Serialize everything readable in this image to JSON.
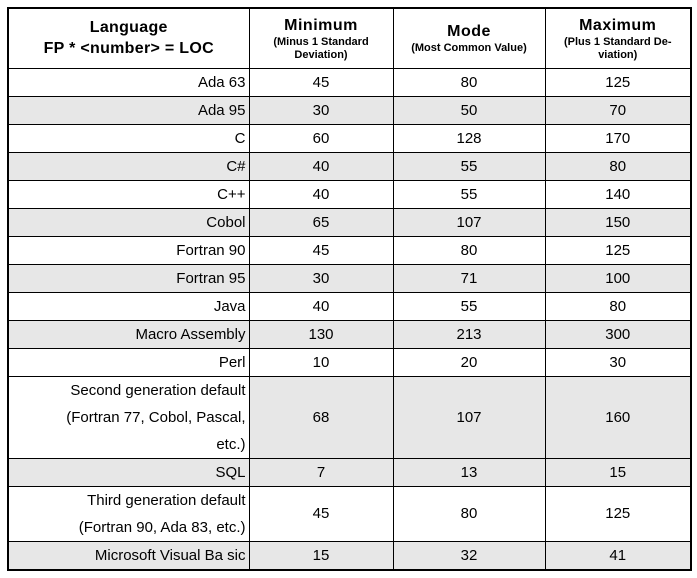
{
  "page": {
    "background": "#ffffff"
  },
  "table": {
    "grid_color": "#000000",
    "shade_color": "#e7e7e7",
    "header": {
      "language_title": "Language",
      "language_subtitle": "FP * <number> = LOC",
      "columns": [
        {
          "label": "Minimum",
          "sub": "(Minus 1 Standard\nDeviation)"
        },
        {
          "label": "Mode",
          "sub": "(Most Common Value)"
        },
        {
          "label": "Maximum",
          "sub": "(Plus 1 Standard De-\nviation)"
        }
      ]
    },
    "rows": [
      {
        "language": "Ada 63",
        "min": "45",
        "mode": "80",
        "max": "125",
        "shade": "none"
      },
      {
        "language": "Ada 95",
        "min": "30",
        "mode": "50",
        "max": "70",
        "shade": "full"
      },
      {
        "language": "C",
        "min": "60",
        "mode": "128",
        "max": "170",
        "shade": "none"
      },
      {
        "language": "C#",
        "min": "40",
        "mode": "55",
        "max": "80",
        "shade": "full"
      },
      {
        "language": "C++",
        "min": "40",
        "mode": "55",
        "max": "140",
        "shade": "none"
      },
      {
        "language": "Cobol",
        "min": "65",
        "mode": "107",
        "max": "150",
        "shade": "full"
      },
      {
        "language": "Fortran 90",
        "min": "45",
        "mode": "80",
        "max": "125",
        "shade": "none"
      },
      {
        "language": "Fortran 95",
        "min": "30",
        "mode": "71",
        "max": "100",
        "shade": "full"
      },
      {
        "language": "Java",
        "min": "40",
        "mode": "55",
        "max": "80",
        "shade": "none"
      },
      {
        "language": "Macro Assembly",
        "min": "130",
        "mode": "213",
        "max": "300",
        "shade": "full"
      },
      {
        "language": "Perl",
        "min": "10",
        "mode": "20",
        "max": "30",
        "shade": "none"
      },
      {
        "language": "Second generation default\n(Fortran 77, Cobol, Pascal,\netc.)",
        "min": "68",
        "mode": "107",
        "max": "160",
        "shade": "values"
      },
      {
        "language": "SQL",
        "min": "7",
        "mode": "13",
        "max": "15",
        "shade": "full"
      },
      {
        "language": "Third generation default\n(Fortran 90, Ada 83, etc.)",
        "min": "45",
        "mode": "80",
        "max": "125",
        "shade": "none"
      },
      {
        "language": "Microsoft Visual Ba sic",
        "min": "15",
        "mode": "32",
        "max": "41",
        "shade": "full"
      }
    ]
  }
}
